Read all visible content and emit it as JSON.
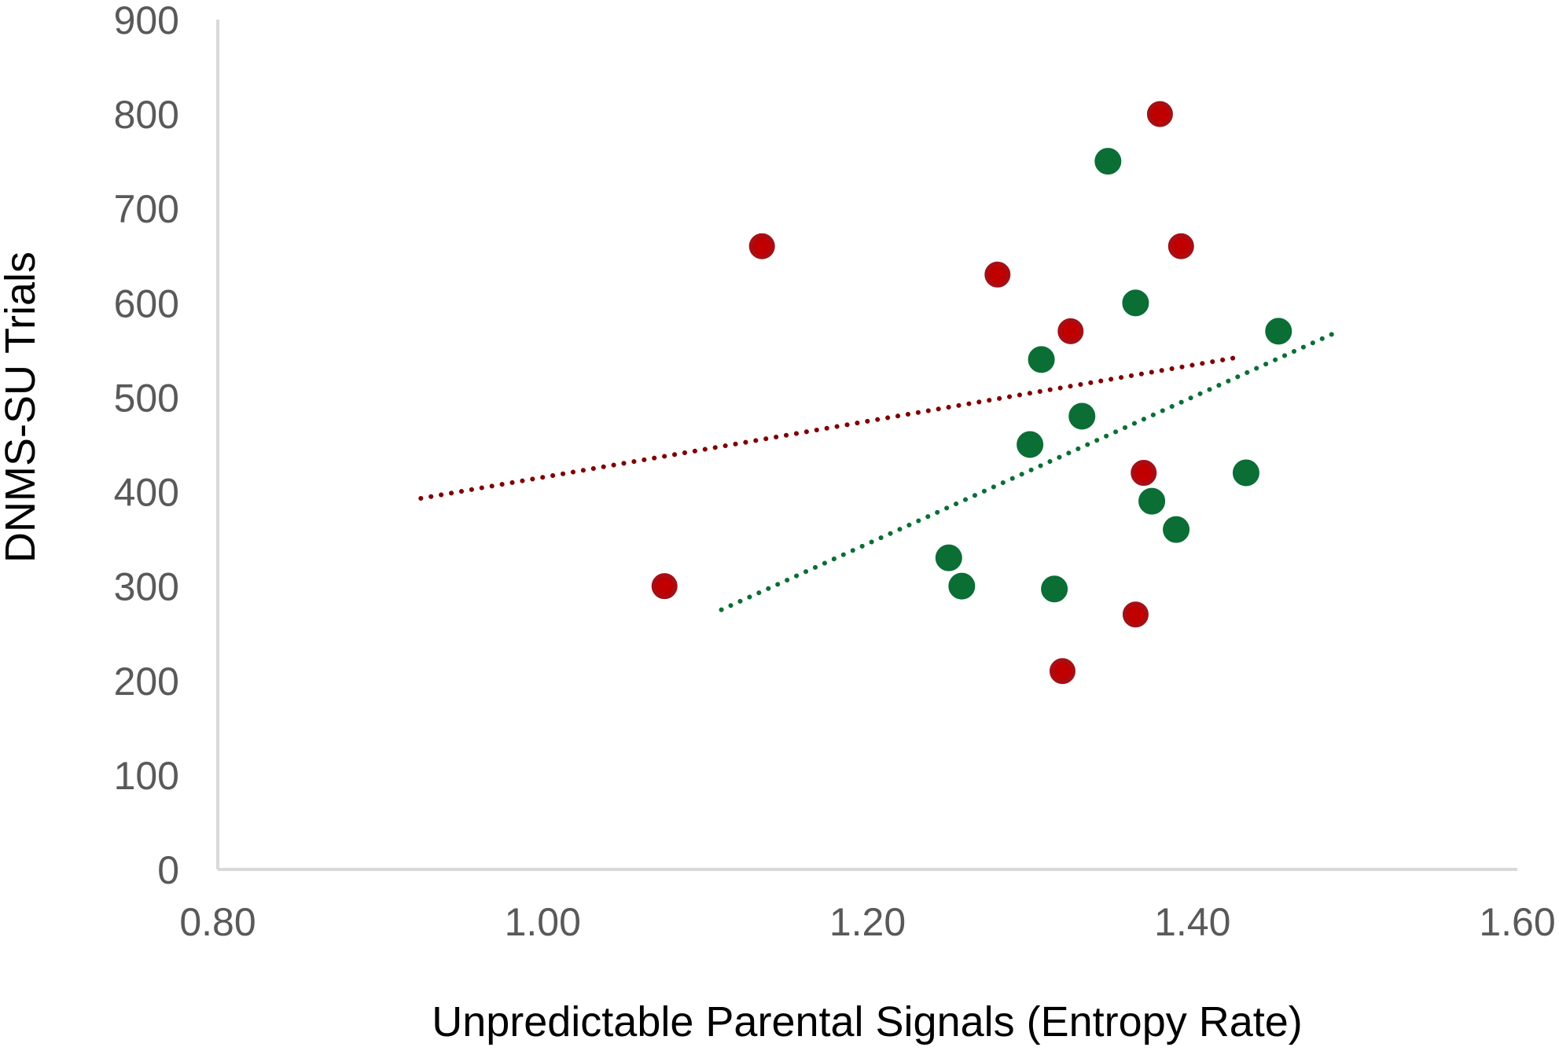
{
  "chart_data": {
    "type": "scatter",
    "title": "",
    "xlabel": "Unpredictable Parental Signals (Entropy Rate)",
    "ylabel": "DNMS-SU Trials",
    "xlim": [
      0.8,
      1.6
    ],
    "ylim": [
      0,
      900
    ],
    "x_ticks": [
      "0.80",
      "1.00",
      "1.20",
      "1.40",
      "1.60"
    ],
    "y_ticks": [
      "0",
      "100",
      "200",
      "300",
      "400",
      "500",
      "600",
      "700",
      "800",
      "900"
    ],
    "grid": false,
    "series": [
      {
        "name": "red",
        "color": "#c00000",
        "edge_color": "#a50f15",
        "points": [
          {
            "x": 1.075,
            "y": 300
          },
          {
            "x": 1.135,
            "y": 660
          },
          {
            "x": 1.28,
            "y": 630
          },
          {
            "x": 1.32,
            "y": 210
          },
          {
            "x": 1.325,
            "y": 570
          },
          {
            "x": 1.365,
            "y": 270
          },
          {
            "x": 1.37,
            "y": 420
          },
          {
            "x": 1.38,
            "y": 800
          },
          {
            "x": 1.393,
            "y": 660
          }
        ],
        "trendline": {
          "style": "dotted",
          "color": "#7f0000",
          "x": [
            0.925,
            1.43
          ],
          "y": [
            393,
            543
          ]
        }
      },
      {
        "name": "green",
        "color": "#0b6e35",
        "edge_color": "#0b6e35",
        "points": [
          {
            "x": 1.25,
            "y": 330
          },
          {
            "x": 1.258,
            "y": 300
          },
          {
            "x": 1.3,
            "y": 450
          },
          {
            "x": 1.307,
            "y": 540
          },
          {
            "x": 1.315,
            "y": 297
          },
          {
            "x": 1.332,
            "y": 480
          },
          {
            "x": 1.348,
            "y": 750
          },
          {
            "x": 1.365,
            "y": 600
          },
          {
            "x": 1.375,
            "y": 390
          },
          {
            "x": 1.39,
            "y": 360
          },
          {
            "x": 1.433,
            "y": 420
          },
          {
            "x": 1.453,
            "y": 570
          }
        ],
        "trendline": {
          "style": "dotted",
          "color": "#0b6e35",
          "x": [
            1.11,
            1.49
          ],
          "y": [
            275,
            570
          ]
        }
      }
    ]
  }
}
